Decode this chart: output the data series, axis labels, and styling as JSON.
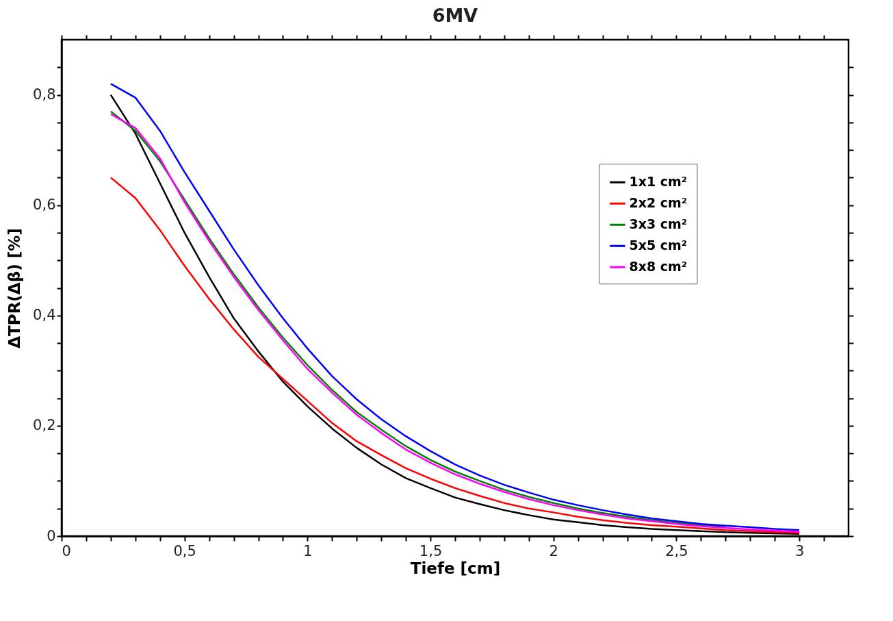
{
  "chart_data": {
    "type": "line",
    "title": "6MV",
    "xlabel": "Tiefe [cm]",
    "ylabel": "ΔTPR(Δβ) [%]",
    "x": [
      0.2,
      0.3,
      0.4,
      0.5,
      0.6,
      0.7,
      0.8,
      0.9,
      1.0,
      1.1,
      1.2,
      1.3,
      1.4,
      1.5,
      1.6,
      1.7,
      1.8,
      1.9,
      2.0,
      2.1,
      2.2,
      2.3,
      2.4,
      2.5,
      2.6,
      2.7,
      2.8,
      2.9,
      3.0
    ],
    "series": [
      {
        "name": "1x1 cm²",
        "color": "#000000",
        "values": [
          0.8,
          0.73,
          0.64,
          0.55,
          0.47,
          0.395,
          0.335,
          0.28,
          0.235,
          0.195,
          0.16,
          0.13,
          0.105,
          0.087,
          0.07,
          0.058,
          0.047,
          0.038,
          0.03,
          0.025,
          0.02,
          0.016,
          0.013,
          0.011,
          0.009,
          0.007,
          0.006,
          0.005,
          0.004
        ]
      },
      {
        "name": "2x2 cm²",
        "color": "#ff0000",
        "values": [
          0.65,
          0.613,
          0.555,
          0.49,
          0.43,
          0.375,
          0.325,
          0.285,
          0.245,
          0.205,
          0.172,
          0.147,
          0.123,
          0.104,
          0.087,
          0.073,
          0.06,
          0.05,
          0.043,
          0.035,
          0.029,
          0.024,
          0.02,
          0.017,
          0.014,
          0.011,
          0.009,
          0.007,
          0.006
        ]
      },
      {
        "name": "3x3 cm²",
        "color": "#008000",
        "values": [
          0.77,
          0.735,
          0.68,
          0.61,
          0.54,
          0.475,
          0.415,
          0.36,
          0.31,
          0.265,
          0.225,
          0.193,
          0.163,
          0.138,
          0.117,
          0.1,
          0.084,
          0.071,
          0.06,
          0.05,
          0.042,
          0.035,
          0.029,
          0.024,
          0.02,
          0.017,
          null,
          null,
          null
        ]
      },
      {
        "name": "5x5 cm²",
        "color": "#0000ff",
        "values": [
          0.82,
          0.795,
          0.735,
          0.66,
          0.59,
          0.52,
          0.455,
          0.395,
          0.34,
          0.29,
          0.248,
          0.212,
          0.181,
          0.154,
          0.13,
          0.11,
          0.093,
          0.079,
          0.066,
          0.056,
          0.047,
          0.039,
          0.032,
          0.027,
          0.022,
          0.019,
          0.016,
          0.013,
          0.011
        ]
      },
      {
        "name": "8x8 cm²",
        "color": "#ff00ff",
        "values": [
          0.765,
          0.74,
          0.685,
          0.605,
          0.535,
          0.47,
          0.41,
          0.355,
          0.303,
          0.26,
          0.22,
          0.187,
          0.157,
          0.133,
          0.112,
          0.095,
          0.08,
          0.067,
          0.056,
          0.047,
          0.039,
          0.032,
          0.027,
          0.022,
          0.018,
          0.015,
          0.012,
          0.01,
          0.008
        ]
      }
    ],
    "xlim": [
      0,
      3.2
    ],
    "ylim": [
      0,
      0.9
    ],
    "xticks": [
      0,
      {
        "value": 0.1,
        "label": null
      },
      {
        "value": 0.2,
        "label": null
      },
      {
        "value": 0.3,
        "label": null
      },
      {
        "value": 0.4,
        "label": null
      },
      {
        "value": 0.5,
        "label": "0,5"
      },
      {
        "value": 0.6,
        "label": null
      },
      {
        "value": 0.7,
        "label": null
      },
      {
        "value": 0.8,
        "label": null
      },
      {
        "value": 0.9,
        "label": null
      },
      1,
      {
        "value": 1.1,
        "label": null
      },
      {
        "value": 1.2,
        "label": null
      },
      {
        "value": 1.3,
        "label": null
      },
      {
        "value": 1.4,
        "label": null
      },
      {
        "value": 1.5,
        "label": "1,5"
      },
      {
        "value": 1.6,
        "label": null
      },
      {
        "value": 1.7,
        "label": null
      },
      {
        "value": 1.8,
        "label": null
      },
      {
        "value": 1.9,
        "label": null
      },
      2,
      {
        "value": 2.1,
        "label": null
      },
      {
        "value": 2.2,
        "label": null
      },
      {
        "value": 2.3,
        "label": null
      },
      {
        "value": 2.4,
        "label": null
      },
      {
        "value": 2.5,
        "label": "2,5"
      },
      {
        "value": 2.6,
        "label": null
      },
      {
        "value": 2.7,
        "label": null
      },
      {
        "value": 2.8,
        "label": null
      },
      {
        "value": 2.9,
        "label": null
      },
      3,
      {
        "value": 3.1,
        "label": null
      }
    ],
    "yticks": [
      0,
      {
        "value": 0.05,
        "label": null
      },
      {
        "value": 0.1,
        "label": null
      },
      {
        "value": 0.15,
        "label": null
      },
      {
        "value": 0.2,
        "label": "0,2"
      },
      {
        "value": 0.25,
        "label": null
      },
      {
        "value": 0.3,
        "label": null
      },
      {
        "value": 0.35,
        "label": null
      },
      {
        "value": 0.4,
        "label": "0,4"
      },
      {
        "value": 0.45,
        "label": null
      },
      {
        "value": 0.5,
        "label": null
      },
      {
        "value": 0.55,
        "label": null
      },
      {
        "value": 0.6,
        "label": "0,6"
      },
      {
        "value": 0.65,
        "label": null
      },
      {
        "value": 0.7,
        "label": null
      },
      {
        "value": 0.75,
        "label": null
      },
      {
        "value": 0.8,
        "label": "0,8"
      },
      {
        "value": 0.85,
        "label": null
      }
    ],
    "grid": false,
    "legend": "right"
  }
}
